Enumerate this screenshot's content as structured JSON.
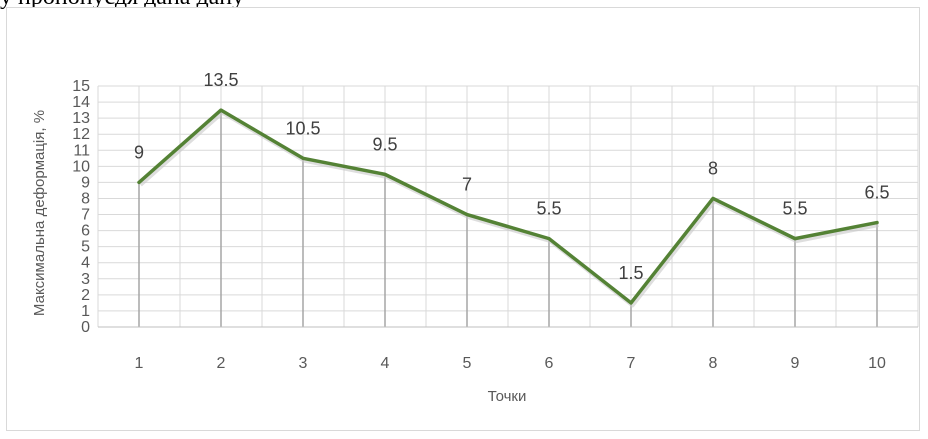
{
  "header": {
    "top_text": "у пропонуєдя дана дану"
  },
  "chart_data": {
    "type": "line",
    "categories": [
      "1",
      "2",
      "3",
      "4",
      "5",
      "6",
      "7",
      "8",
      "9",
      "10"
    ],
    "series": [
      {
        "values": [
          9,
          13.5,
          10.5,
          9.5,
          7,
          5.5,
          1.5,
          8,
          5.5,
          6.5
        ]
      }
    ],
    "data_labels": [
      "9",
      "13.5",
      "10.5",
      "9.5",
      "7",
      "5.5",
      "1.5",
      "8",
      "5.5",
      "6.5"
    ],
    "xlabel": "Точки",
    "ylabel": "Максимальна деформація, %",
    "ylim": [
      0,
      15
    ],
    "yticks": [
      0,
      1,
      2,
      3,
      4,
      5,
      6,
      7,
      8,
      9,
      10,
      11,
      12,
      13,
      14,
      15
    ],
    "grid": true,
    "drop_lines": true,
    "colors": {
      "line": "#548235",
      "drop_line": "#a6a6a6",
      "grid": "#d9d9d9"
    }
  }
}
